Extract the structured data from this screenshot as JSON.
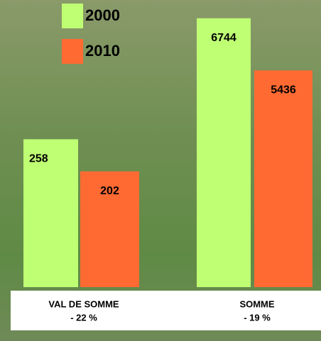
{
  "chart_data": [
    {
      "type": "bar",
      "title": "VAL DE SOMME",
      "subtitle": "- 22 %",
      "series": [
        {
          "name": "2000",
          "color": "#bfff73",
          "values": [
            258
          ]
        },
        {
          "name": "2010",
          "color": "#ff6a33",
          "values": [
            202
          ]
        }
      ],
      "ylim": [
        0,
        480
      ]
    },
    {
      "type": "bar",
      "title": "SOMME",
      "subtitle": "- 19 %",
      "series": [
        {
          "color": "#bfff73",
          "values": [
            6744
          ]
        },
        {
          "color": "#ff6a33",
          "values": [
            5436
          ]
        }
      ],
      "ylim": [
        0,
        6900
      ]
    }
  ]
}
